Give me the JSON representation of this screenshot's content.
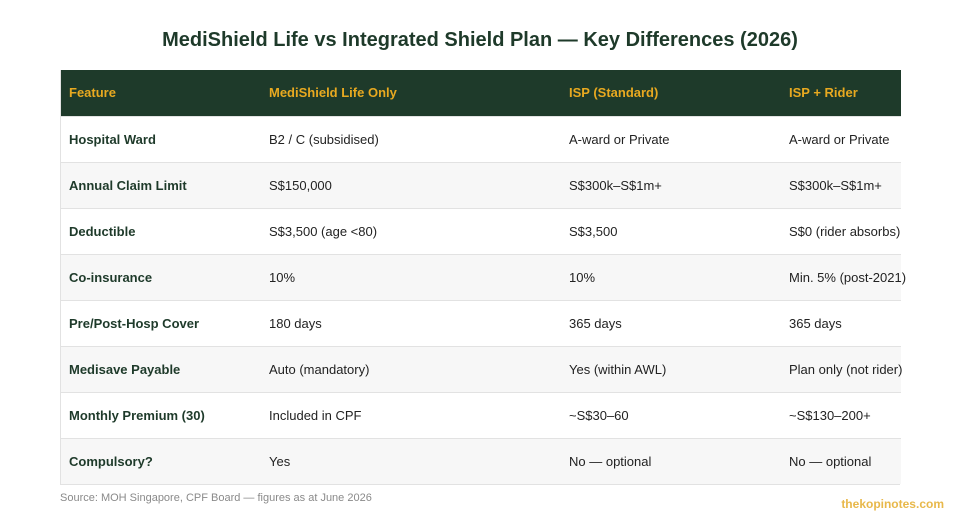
{
  "title": "MediShield Life vs Integrated Shield Plan — Key Differences (2026)",
  "table": {
    "headers": [
      "Feature",
      "MediShield Life Only",
      "ISP (Standard)",
      "ISP + Rider"
    ],
    "rows": [
      [
        "Hospital Ward",
        "B2 / C (subsidised)",
        "A-ward or Private",
        "A-ward or Private"
      ],
      [
        "Annual Claim Limit",
        "S$150,000",
        "S$300k–S$1m+",
        "S$300k–S$1m+"
      ],
      [
        "Deductible",
        "S$3,500 (age <80)",
        "S$3,500",
        "S$0 (rider absorbs)"
      ],
      [
        "Co-insurance",
        "10%",
        "10%",
        "Min. 5% (post-2021)"
      ],
      [
        "Pre/Post-Hosp Cover",
        "180 days",
        "365 days",
        "365 days"
      ],
      [
        "Medisave Payable",
        "Auto (mandatory)",
        "Yes (within AWL)",
        "Plan only (not rider)"
      ],
      [
        "Monthly Premium (30)",
        "Included in CPF",
        "~S$30–60",
        "~S$130–200+"
      ],
      [
        "Compulsory?",
        "Yes",
        "No — optional",
        "No — optional"
      ]
    ]
  },
  "source": "Source: MOH Singapore, CPF Board — figures as at June 2026",
  "brand": "thekopinotes.com",
  "colors": {
    "header_bg": "#1e3a2a",
    "header_text": "#e8a920",
    "brand": "#e8b84a"
  }
}
